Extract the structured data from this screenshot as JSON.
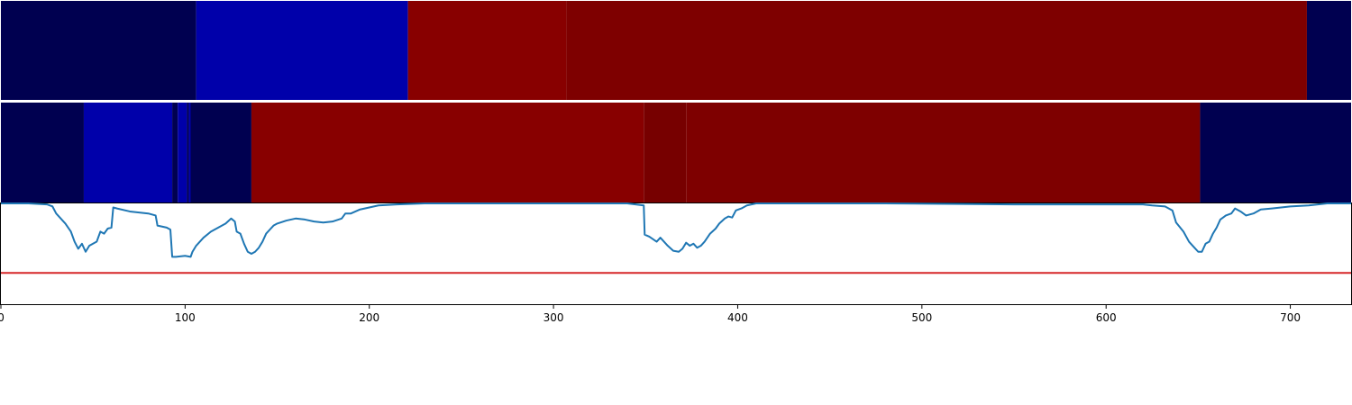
{
  "chart_data": {
    "type": "heatmap",
    "xlim": [
      0,
      733
    ],
    "colors": {
      "dark_navy": "#000050",
      "blue": "#0000AA",
      "red": "#880000",
      "dark_red": "#7E0000",
      "darker_red": "#770000",
      "line": "#1F77B4",
      "threshold": "#D62728"
    },
    "tracks": [
      {
        "segments": [
          {
            "start": 0,
            "end": 106,
            "color": "dark_navy"
          },
          {
            "start": 106,
            "end": 221,
            "color": "blue"
          },
          {
            "start": 221,
            "end": 307,
            "color": "red"
          },
          {
            "start": 307,
            "end": 709,
            "color": "dark_red"
          },
          {
            "start": 709,
            "end": 733,
            "color": "dark_navy"
          }
        ]
      },
      {
        "segments": [
          {
            "start": 0,
            "end": 45,
            "color": "dark_navy"
          },
          {
            "start": 45,
            "end": 93,
            "color": "blue"
          },
          {
            "start": 93,
            "end": 96,
            "color": "dark_navy"
          },
          {
            "start": 96,
            "end": 101,
            "color": "blue"
          },
          {
            "start": 101,
            "end": 102,
            "color": "dark_navy"
          },
          {
            "start": 102,
            "end": 103,
            "color": "blue"
          },
          {
            "start": 103,
            "end": 136,
            "color": "dark_navy"
          },
          {
            "start": 136,
            "end": 349,
            "color": "red"
          },
          {
            "start": 349,
            "end": 372,
            "color": "darker_red"
          },
          {
            "start": 372,
            "end": 651,
            "color": "dark_red"
          },
          {
            "start": 651,
            "end": 733,
            "color": "dark_navy"
          }
        ]
      }
    ],
    "line_series": {
      "ylim": [
        0,
        1
      ],
      "threshold": 0.31,
      "points": [
        [
          0,
          1.0
        ],
        [
          15,
          1.0
        ],
        [
          25,
          0.99
        ],
        [
          28,
          0.97
        ],
        [
          30,
          0.9
        ],
        [
          35,
          0.8
        ],
        [
          38,
          0.72
        ],
        [
          40,
          0.62
        ],
        [
          42,
          0.55
        ],
        [
          44,
          0.6
        ],
        [
          46,
          0.52
        ],
        [
          48,
          0.58
        ],
        [
          50,
          0.6
        ],
        [
          52,
          0.62
        ],
        [
          54,
          0.72
        ],
        [
          56,
          0.7
        ],
        [
          58,
          0.75
        ],
        [
          60,
          0.76
        ],
        [
          61,
          0.96
        ],
        [
          63,
          0.95
        ],
        [
          70,
          0.92
        ],
        [
          80,
          0.9
        ],
        [
          84,
          0.88
        ],
        [
          85,
          0.78
        ],
        [
          90,
          0.76
        ],
        [
          92,
          0.74
        ],
        [
          93,
          0.47
        ],
        [
          95,
          0.47
        ],
        [
          100,
          0.48
        ],
        [
          103,
          0.47
        ],
        [
          104,
          0.52
        ],
        [
          106,
          0.58
        ],
        [
          108,
          0.62
        ],
        [
          110,
          0.66
        ],
        [
          114,
          0.72
        ],
        [
          118,
          0.76
        ],
        [
          122,
          0.8
        ],
        [
          125,
          0.85
        ],
        [
          127,
          0.82
        ],
        [
          128,
          0.72
        ],
        [
          130,
          0.7
        ],
        [
          132,
          0.6
        ],
        [
          134,
          0.52
        ],
        [
          136,
          0.5
        ],
        [
          138,
          0.52
        ],
        [
          140,
          0.56
        ],
        [
          142,
          0.62
        ],
        [
          144,
          0.7
        ],
        [
          146,
          0.74
        ],
        [
          148,
          0.78
        ],
        [
          150,
          0.8
        ],
        [
          155,
          0.83
        ],
        [
          160,
          0.85
        ],
        [
          165,
          0.84
        ],
        [
          170,
          0.82
        ],
        [
          175,
          0.81
        ],
        [
          180,
          0.82
        ],
        [
          185,
          0.85
        ],
        [
          187,
          0.9
        ],
        [
          190,
          0.9
        ],
        [
          195,
          0.94
        ],
        [
          200,
          0.96
        ],
        [
          205,
          0.98
        ],
        [
          215,
          0.99
        ],
        [
          230,
          1.0
        ],
        [
          340,
          1.0
        ],
        [
          349,
          0.98
        ],
        [
          349.5,
          0.69
        ],
        [
          352,
          0.67
        ],
        [
          356,
          0.62
        ],
        [
          358,
          0.66
        ],
        [
          360,
          0.62
        ],
        [
          362,
          0.58
        ],
        [
          365,
          0.53
        ],
        [
          368,
          0.52
        ],
        [
          370,
          0.55
        ],
        [
          372,
          0.61
        ],
        [
          374,
          0.58
        ],
        [
          376,
          0.6
        ],
        [
          378,
          0.56
        ],
        [
          380,
          0.58
        ],
        [
          382,
          0.62
        ],
        [
          385,
          0.7
        ],
        [
          388,
          0.75
        ],
        [
          390,
          0.8
        ],
        [
          393,
          0.85
        ],
        [
          395,
          0.87
        ],
        [
          397,
          0.86
        ],
        [
          399,
          0.93
        ],
        [
          402,
          0.95
        ],
        [
          405,
          0.98
        ],
        [
          410,
          1.0
        ],
        [
          480,
          1.0
        ],
        [
          550,
          0.99
        ],
        [
          600,
          0.99
        ],
        [
          620,
          0.99
        ],
        [
          625,
          0.98
        ],
        [
          632,
          0.97
        ],
        [
          636,
          0.93
        ],
        [
          638,
          0.81
        ],
        [
          642,
          0.72
        ],
        [
          645,
          0.62
        ],
        [
          648,
          0.56
        ],
        [
          650,
          0.52
        ],
        [
          652,
          0.52
        ],
        [
          654,
          0.6
        ],
        [
          656,
          0.62
        ],
        [
          658,
          0.7
        ],
        [
          660,
          0.76
        ],
        [
          662,
          0.84
        ],
        [
          665,
          0.88
        ],
        [
          668,
          0.9
        ],
        [
          670,
          0.95
        ],
        [
          673,
          0.92
        ],
        [
          676,
          0.88
        ],
        [
          680,
          0.9
        ],
        [
          684,
          0.94
        ],
        [
          690,
          0.95
        ],
        [
          700,
          0.97
        ],
        [
          710,
          0.98
        ],
        [
          720,
          1.0
        ],
        [
          733,
          1.0
        ]
      ]
    },
    "x_ticks": [
      "0",
      "100",
      "200",
      "300",
      "400",
      "500",
      "600",
      "700"
    ]
  }
}
